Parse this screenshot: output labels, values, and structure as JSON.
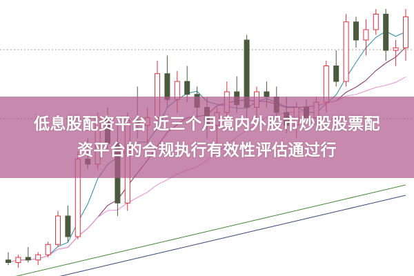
{
  "headline": {
    "line1": "低息股配资平台 近三个月境内外股市炒股股票配",
    "line2": "资平台的合规执行有效性评估通过行"
  },
  "colors": {
    "up": "#d8303c",
    "down": "#4b5a3c",
    "banner": "#b25c8e",
    "ma": [
      "#3a90a8",
      "#8a3a6a",
      "#e49ad4",
      "#4a8a3a",
      "#3a4a80"
    ]
  },
  "chart_data": {
    "type": "candlestick",
    "title": "",
    "grid": "dotted horizontal",
    "moving_averages": [
      5,
      10,
      20,
      30,
      60
    ],
    "ohlc": [
      [
        3,
        6,
        1,
        2
      ],
      [
        2,
        5,
        0,
        4
      ],
      [
        4,
        8,
        2,
        3
      ],
      [
        3,
        6,
        1,
        5
      ],
      [
        5,
        10,
        4,
        9
      ],
      [
        9,
        22,
        8,
        20
      ],
      [
        20,
        24,
        10,
        12
      ],
      [
        12,
        45,
        11,
        42
      ],
      [
        42,
        50,
        38,
        40
      ],
      [
        40,
        60,
        38,
        58
      ],
      [
        58,
        62,
        45,
        48
      ],
      [
        48,
        55,
        20,
        25
      ],
      [
        25,
        60,
        22,
        57
      ],
      [
        57,
        70,
        50,
        55
      ],
      [
        55,
        62,
        48,
        58
      ],
      [
        58,
        80,
        55,
        75
      ],
      [
        75,
        82,
        62,
        65
      ],
      [
        65,
        76,
        60,
        72
      ],
      [
        72,
        78,
        64,
        67
      ],
      [
        67,
        70,
        58,
        62
      ],
      [
        62,
        66,
        50,
        55
      ],
      [
        55,
        62,
        48,
        60
      ],
      [
        60,
        72,
        58,
        68
      ],
      [
        68,
        74,
        60,
        63
      ],
      [
        88,
        90,
        58,
        62
      ],
      [
        62,
        70,
        58,
        68
      ],
      [
        68,
        72,
        62,
        66
      ],
      [
        66,
        70,
        58,
        60
      ],
      [
        60,
        66,
        52,
        55
      ],
      [
        55,
        64,
        50,
        62
      ],
      [
        62,
        65,
        56,
        58
      ],
      [
        58,
        66,
        55,
        64
      ],
      [
        64,
        80,
        60,
        78
      ],
      [
        78,
        84,
        70,
        72
      ],
      [
        72,
        98,
        70,
        95
      ],
      [
        95,
        97,
        85,
        88
      ],
      [
        88,
        96,
        82,
        92
      ],
      [
        92,
        100,
        90,
        98
      ],
      [
        98,
        100,
        80,
        84
      ],
      [
        84,
        88,
        78,
        85
      ],
      [
        85,
        100,
        80,
        97
      ]
    ]
  }
}
